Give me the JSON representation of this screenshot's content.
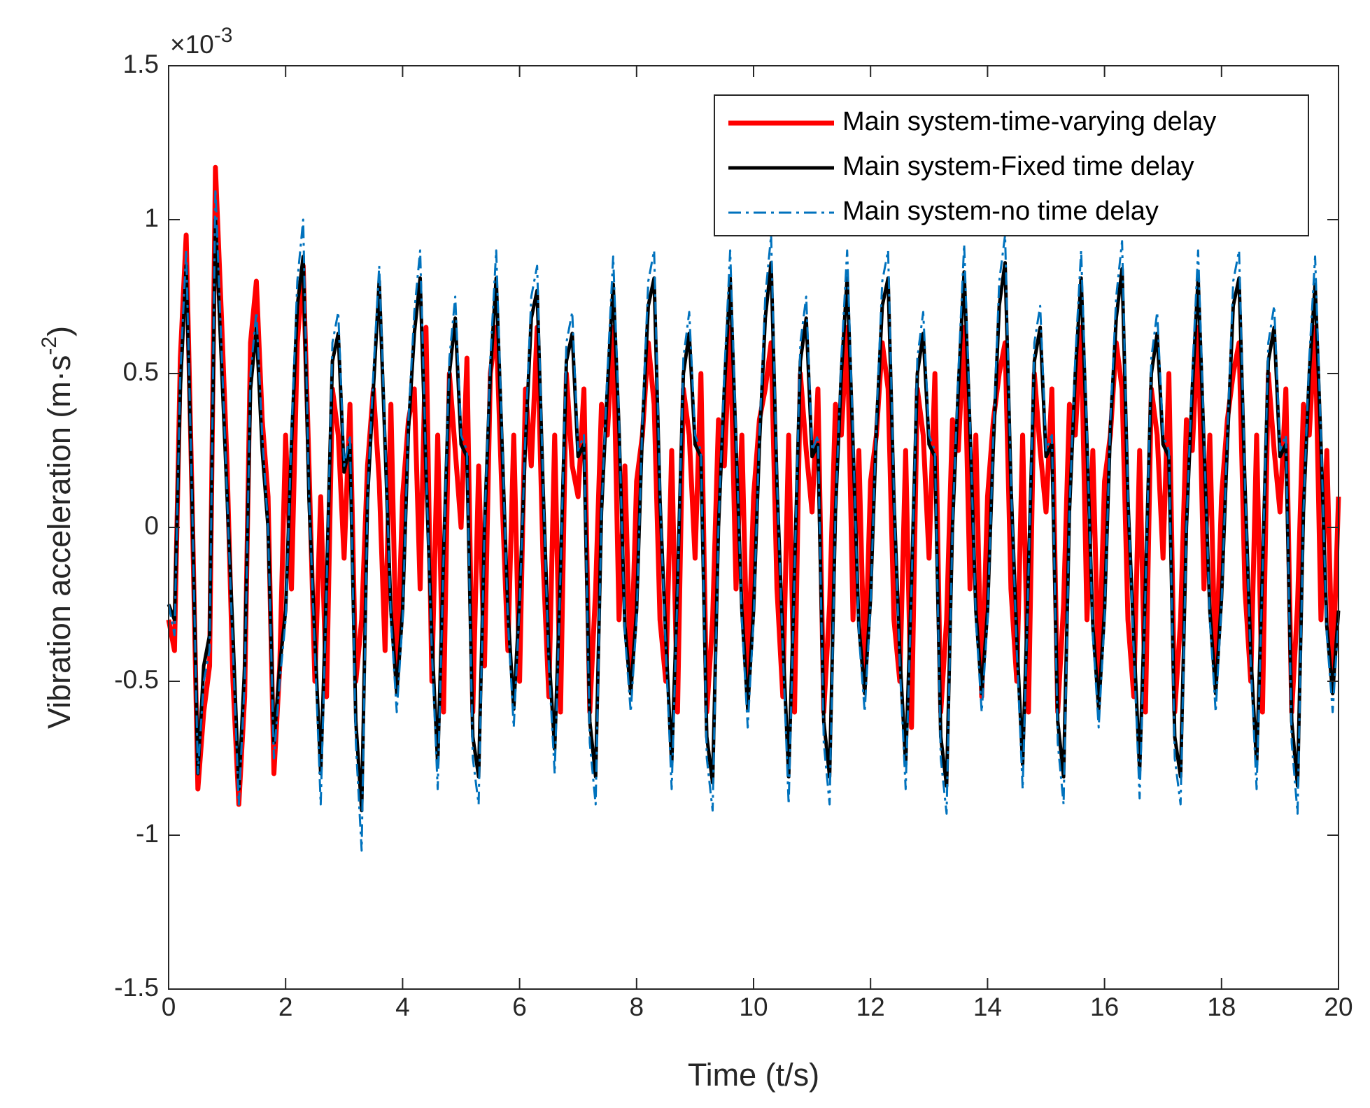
{
  "chart_data": {
    "type": "line",
    "xlabel": "Time (t/s)",
    "ylabel_parts": [
      "Vibration acceleration (m·s",
      "-2",
      ")"
    ],
    "y_exponent": {
      "base": "×10",
      "exponent": "-3"
    },
    "xlim": [
      0,
      20
    ],
    "xticks": [
      0,
      2,
      4,
      6,
      8,
      10,
      12,
      14,
      16,
      18,
      20
    ],
    "ylim": [
      -1.5,
      1.5
    ],
    "yticks": [
      -1.5,
      -1,
      -0.5,
      0,
      0.5,
      1,
      1.5
    ],
    "grid": false,
    "box": true,
    "legend": "upper right",
    "x": [
      0,
      0.1,
      0.2,
      0.3,
      0.4,
      0.5,
      0.6,
      0.7,
      0.8,
      0.9,
      1,
      1.1,
      1.2,
      1.3,
      1.4,
      1.5,
      1.6,
      1.7,
      1.8,
      1.9,
      2,
      2.1,
      2.2,
      2.3,
      2.4,
      2.5,
      2.6,
      2.7,
      2.8,
      2.9,
      3,
      3.1,
      3.2,
      3.3,
      3.4,
      3.5,
      3.6,
      3.7,
      3.8,
      3.9,
      4,
      4.1,
      4.2,
      4.3,
      4.4,
      4.5,
      4.6,
      4.7,
      4.8,
      4.9,
      5,
      5.1,
      5.2,
      5.3,
      5.4,
      5.5,
      5.6,
      5.7,
      5.8,
      5.9,
      6,
      6.1,
      6.2,
      6.3,
      6.4,
      6.5,
      6.6,
      6.7,
      6.8,
      6.9,
      7,
      7.1,
      7.2,
      7.3,
      7.4,
      7.5,
      7.6,
      7.7,
      7.8,
      7.9,
      8,
      8.1,
      8.2,
      8.3,
      8.4,
      8.5,
      8.6,
      8.7,
      8.8,
      8.9,
      9,
      9.1,
      9.2,
      9.3,
      9.4,
      9.5,
      9.6,
      9.7,
      9.8,
      9.9,
      10,
      10.1,
      10.2,
      10.3,
      10.4,
      10.5,
      10.6,
      10.7,
      10.8,
      10.9,
      11,
      11.1,
      11.2,
      11.3,
      11.4,
      11.5,
      11.6,
      11.7,
      11.8,
      11.9,
      12,
      12.1,
      12.2,
      12.3,
      12.4,
      12.5,
      12.6,
      12.7,
      12.8,
      12.9,
      13,
      13.1,
      13.2,
      13.3,
      13.4,
      13.5,
      13.6,
      13.7,
      13.8,
      13.9,
      14,
      14.1,
      14.2,
      14.3,
      14.4,
      14.5,
      14.6,
      14.7,
      14.8,
      14.9,
      15,
      15.1,
      15.2,
      15.3,
      15.4,
      15.5,
      15.6,
      15.7,
      15.8,
      15.9,
      16,
      16.1,
      16.2,
      16.3,
      16.4,
      16.5,
      16.6,
      16.7,
      16.8,
      16.9,
      17,
      17.1,
      17.2,
      17.3,
      17.4,
      17.5,
      17.6,
      17.7,
      17.8,
      17.9,
      18,
      18.1,
      18.2,
      18.3,
      18.4,
      18.5,
      18.6,
      18.7,
      18.8,
      18.9,
      19,
      19.1,
      19.2,
      19.3,
      19.4,
      19.5,
      19.6,
      19.7,
      19.8,
      19.9,
      20
    ],
    "series": [
      {
        "name": "Main system-time-varying delay",
        "color": "#ff0000",
        "line_style": "solid",
        "line_width": 7,
        "values": [
          -0.3,
          -0.4,
          0.55,
          0.95,
          0.1,
          -0.85,
          -0.6,
          -0.45,
          1.17,
          0.7,
          0.2,
          -0.5,
          -0.9,
          -0.55,
          0.6,
          0.8,
          0.35,
          0.1,
          -0.8,
          -0.45,
          0.3,
          -0.2,
          0.6,
          0.85,
          0.2,
          -0.5,
          0.1,
          -0.55,
          0.45,
          0.3,
          -0.1,
          0.4,
          -0.5,
          -0.3,
          0.2,
          0.45,
          0.15,
          -0.4,
          0.4,
          -0.5,
          0.1,
          0.35,
          0.45,
          -0.2,
          0.65,
          -0.5,
          0.3,
          -0.6,
          0.5,
          0.25,
          0.0,
          0.55,
          -0.6,
          0.2,
          -0.45,
          0.5,
          0.65,
          0.1,
          -0.4,
          0.3,
          -0.5,
          0.45,
          0.2,
          0.65,
          -0.1,
          -0.55,
          0.3,
          -0.6,
          0.5,
          0.2,
          0.1,
          0.45,
          -0.6,
          -0.2,
          0.4,
          0.3,
          0.65,
          -0.3,
          0.2,
          -0.5,
          0.15,
          0.3,
          0.6,
          0.4,
          -0.3,
          -0.5,
          0.25,
          -0.6,
          0.45,
          0.3,
          -0.1,
          0.5,
          -0.6,
          -0.3,
          0.35,
          0.2,
          0.65,
          -0.2,
          0.3,
          -0.5,
          0.1,
          0.35,
          0.45,
          0.6,
          -0.2,
          -0.55,
          0.3,
          -0.6,
          0.5,
          0.25,
          0.05,
          0.45,
          -0.6,
          -0.25,
          0.4,
          0.3,
          0.65,
          -0.3,
          0.25,
          -0.5,
          0.15,
          0.3,
          0.6,
          0.45,
          -0.3,
          -0.5,
          0.25,
          -0.65,
          0.45,
          0.3,
          -0.1,
          0.5,
          -0.6,
          -0.3,
          0.35,
          0.25,
          0.65,
          -0.2,
          0.3,
          -0.55,
          0.1,
          0.35,
          0.5,
          0.6,
          -0.2,
          -0.5,
          0.3,
          -0.6,
          0.5,
          0.25,
          0.05,
          0.45,
          -0.6,
          -0.25,
          0.4,
          0.3,
          0.65,
          -0.3,
          0.25,
          -0.5,
          0.15,
          0.3,
          0.6,
          0.45,
          -0.3,
          -0.55,
          0.25,
          -0.6,
          0.45,
          0.3,
          -0.1,
          0.5,
          -0.6,
          -0.3,
          0.35,
          0.25,
          0.65,
          -0.2,
          0.3,
          -0.5,
          0.1,
          0.35,
          0.5,
          0.6,
          -0.2,
          -0.5,
          0.3,
          -0.6,
          0.5,
          0.25,
          0.05,
          0.45,
          -0.6,
          -0.25,
          0.4,
          0.3,
          0.65,
          -0.3,
          0.25,
          -0.5,
          0.1
        ]
      },
      {
        "name": "Main system-Fixed time delay",
        "color": "#000000",
        "line_style": "solid",
        "line_width": 5,
        "values": [
          -0.25,
          -0.3,
          0.45,
          0.85,
          0.1,
          -0.8,
          -0.45,
          -0.35,
          1.0,
          0.55,
          0.1,
          -0.35,
          -0.85,
          -0.45,
          0.45,
          0.65,
          0.25,
          0.0,
          -0.7,
          -0.45,
          -0.27,
          0.27,
          0.72,
          0.88,
          0.09,
          -0.36,
          -0.8,
          -0.18,
          0.54,
          0.63,
          0.18,
          0.27,
          -0.63,
          -0.92,
          0.09,
          0.45,
          0.8,
          0.27,
          -0.27,
          -0.54,
          -0.27,
          0.32,
          0.63,
          0.81,
          0.18,
          -0.36,
          -0.77,
          -0.09,
          0.5,
          0.68,
          0.27,
          0.23,
          -0.68,
          -0.81,
          0.0,
          0.5,
          0.81,
          0.27,
          -0.27,
          -0.59,
          -0.23,
          0.27,
          0.68,
          0.77,
          0.14,
          -0.41,
          -0.72,
          -0.14,
          0.54,
          0.63,
          0.23,
          0.27,
          -0.63,
          -0.81,
          0.05,
          0.45,
          0.79,
          0.32,
          -0.32,
          -0.54,
          -0.27,
          0.32,
          0.72,
          0.81,
          0.09,
          -0.36,
          -0.77,
          -0.18,
          0.5,
          0.63,
          0.27,
          0.23,
          -0.68,
          -0.83,
          0.0,
          0.45,
          0.81,
          0.27,
          -0.27,
          -0.59,
          -0.27,
          0.27,
          0.68,
          0.86,
          0.14,
          -0.36,
          -0.81,
          -0.14,
          0.54,
          0.68,
          0.23,
          0.27,
          -0.63,
          -0.81,
          0.05,
          0.5,
          0.81,
          0.27,
          -0.32,
          -0.54,
          -0.23,
          0.32,
          0.72,
          0.81,
          0.09,
          -0.41,
          -0.77,
          -0.18,
          0.5,
          0.63,
          0.27,
          0.23,
          -0.68,
          -0.84,
          0.0,
          0.45,
          0.83,
          0.32,
          -0.27,
          -0.54,
          -0.27,
          0.27,
          0.72,
          0.86,
          0.14,
          -0.36,
          -0.77,
          -0.14,
          0.54,
          0.65,
          0.23,
          0.27,
          -0.63,
          -0.81,
          0.05,
          0.5,
          0.81,
          0.27,
          -0.32,
          -0.59,
          -0.27,
          0.32,
          0.68,
          0.84,
          0.09,
          -0.36,
          -0.79,
          -0.18,
          0.5,
          0.63,
          0.27,
          0.23,
          -0.68,
          -0.81,
          0.0,
          0.45,
          0.81,
          0.27,
          -0.27,
          -0.54,
          -0.23,
          0.27,
          0.72,
          0.81,
          0.14,
          -0.41,
          -0.77,
          -0.14,
          0.54,
          0.65,
          0.23,
          0.27,
          -0.63,
          -0.84,
          0.05,
          0.5,
          0.79,
          0.27,
          -0.32,
          -0.54,
          -0.27
        ]
      },
      {
        "name": "Main system-no time delay",
        "color": "#0072bd",
        "line_style": "dashdot",
        "line_width": 3,
        "values": [
          -0.25,
          -0.35,
          0.5,
          0.9,
          0.1,
          -0.8,
          -0.5,
          -0.4,
          1.1,
          0.6,
          0.1,
          -0.4,
          -0.9,
          -0.5,
          0.5,
          0.7,
          0.3,
          0.0,
          -0.75,
          -0.5,
          -0.3,
          0.3,
          0.8,
          1.0,
          0.1,
          -0.4,
          -0.9,
          -0.2,
          0.6,
          0.7,
          0.2,
          0.3,
          -0.7,
          -1.05,
          0.1,
          0.5,
          0.85,
          0.3,
          -0.3,
          -0.6,
          -0.3,
          0.35,
          0.7,
          0.9,
          0.2,
          -0.4,
          -0.85,
          -0.1,
          0.55,
          0.75,
          0.3,
          0.25,
          -0.75,
          -0.9,
          0.0,
          0.55,
          0.9,
          0.3,
          -0.3,
          -0.65,
          -0.25,
          0.3,
          0.75,
          0.85,
          0.15,
          -0.45,
          -0.8,
          -0.15,
          0.6,
          0.7,
          0.25,
          0.3,
          -0.7,
          -0.9,
          0.05,
          0.5,
          0.88,
          0.35,
          -0.35,
          -0.6,
          -0.3,
          0.35,
          0.8,
          0.9,
          0.1,
          -0.4,
          -0.85,
          -0.2,
          0.55,
          0.7,
          0.3,
          0.25,
          -0.75,
          -0.92,
          0.0,
          0.5,
          0.9,
          0.3,
          -0.3,
          -0.65,
          -0.3,
          0.3,
          0.75,
          0.95,
          0.15,
          -0.4,
          -0.9,
          -0.15,
          0.6,
          0.75,
          0.25,
          0.3,
          -0.7,
          -0.9,
          0.05,
          0.55,
          0.9,
          0.3,
          -0.35,
          -0.6,
          -0.25,
          0.35,
          0.8,
          0.9,
          0.1,
          -0.45,
          -0.85,
          -0.2,
          0.55,
          0.7,
          0.3,
          0.25,
          -0.75,
          -0.93,
          0.0,
          0.5,
          0.92,
          0.35,
          -0.3,
          -0.6,
          -0.3,
          0.3,
          0.8,
          0.95,
          0.15,
          -0.4,
          -0.85,
          -0.15,
          0.6,
          0.72,
          0.25,
          0.3,
          -0.7,
          -0.9,
          0.05,
          0.55,
          0.9,
          0.3,
          -0.35,
          -0.65,
          -0.3,
          0.35,
          0.75,
          0.93,
          0.1,
          -0.4,
          -0.88,
          -0.2,
          0.55,
          0.7,
          0.3,
          0.25,
          -0.75,
          -0.9,
          0.0,
          0.5,
          0.9,
          0.3,
          -0.3,
          -0.6,
          -0.25,
          0.3,
          0.8,
          0.9,
          0.15,
          -0.45,
          -0.85,
          -0.15,
          0.6,
          0.72,
          0.25,
          0.3,
          -0.7,
          -0.93,
          0.05,
          0.55,
          0.88,
          0.3,
          -0.35,
          -0.6,
          -0.3
        ]
      }
    ]
  }
}
